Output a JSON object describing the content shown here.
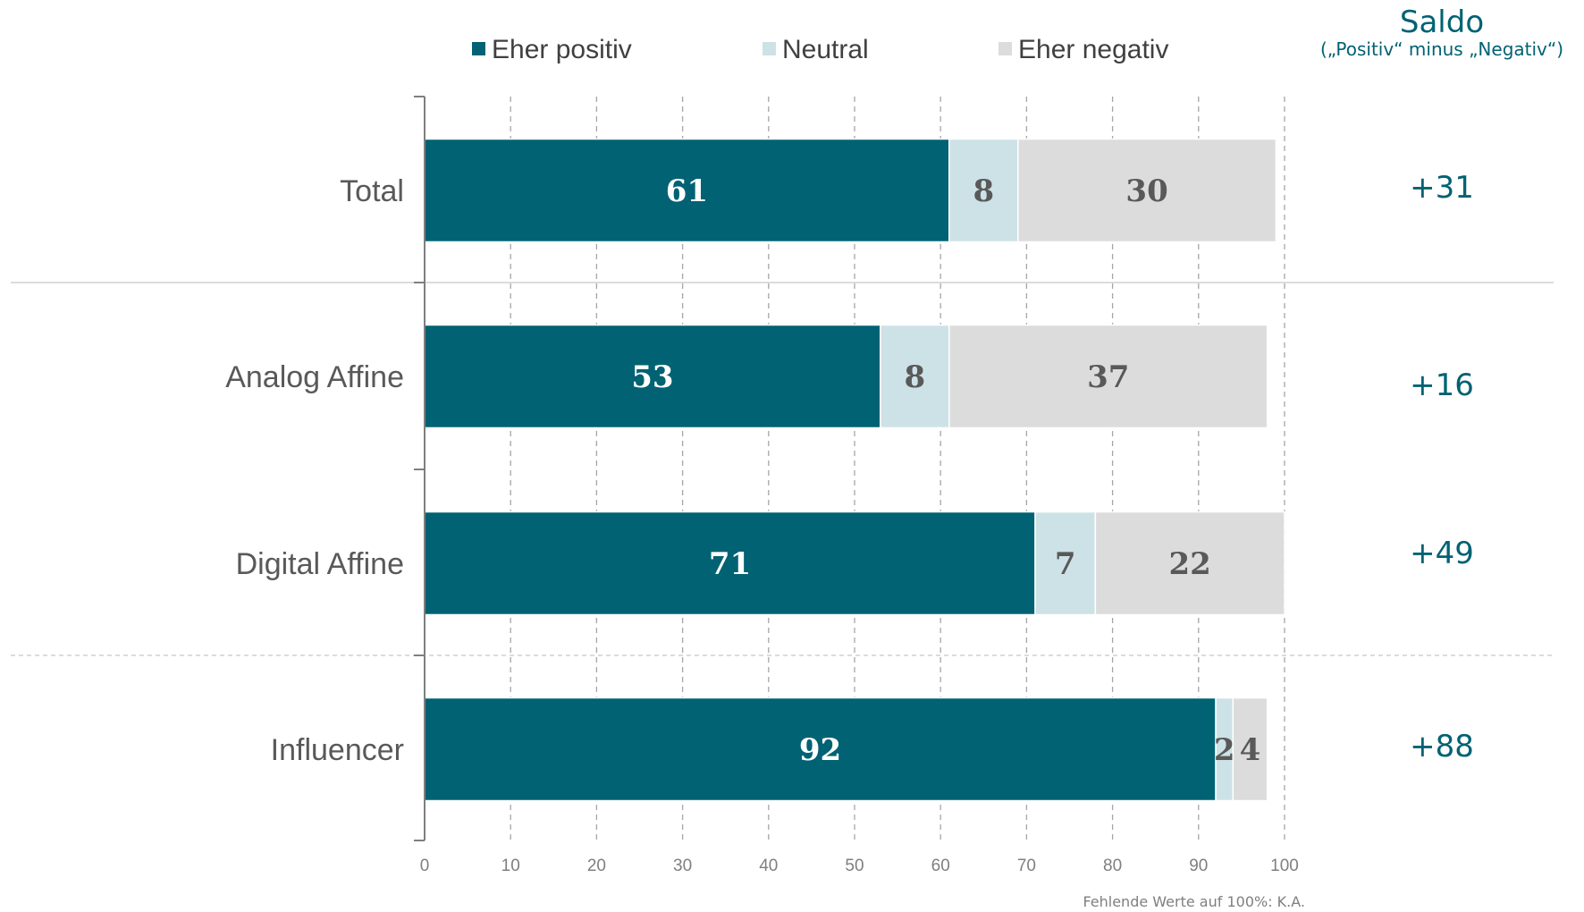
{
  "chart_data": {
    "type": "bar",
    "orientation": "horizontal",
    "stacked": true,
    "categories": [
      "Total",
      "Analog Affine",
      "Digital Affine",
      "Influencer"
    ],
    "series": [
      {
        "name": "Eher positiv",
        "values": [
          61,
          53,
          71,
          92
        ],
        "color": "#006273",
        "label_color": "#ffffff"
      },
      {
        "name": "Neutral",
        "values": [
          8,
          8,
          7,
          2
        ],
        "color": "#cde2e6",
        "label_color": "#595959"
      },
      {
        "name": "Eher negativ",
        "values": [
          30,
          37,
          22,
          4
        ],
        "color": "#dcdcdc",
        "label_color": "#595959"
      }
    ],
    "xlim": [
      0,
      100
    ],
    "x_ticks": [
      0,
      10,
      20,
      30,
      40,
      50,
      60,
      70,
      80,
      90,
      100
    ],
    "grid": "vertical dashed",
    "legend_position": "top",
    "saldo": {
      "title": "Saldo",
      "subtitle": "(„Positiv“ minus „Negativ“)",
      "values": [
        "+31",
        "+16",
        "+49",
        "+88"
      ]
    },
    "footnote": "Fehlende Werte auf 100%: K.A."
  }
}
